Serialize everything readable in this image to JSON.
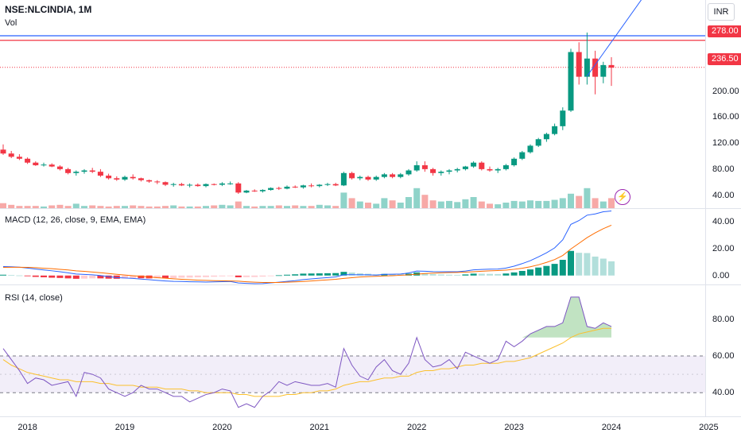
{
  "header": {
    "symbol": "NSE:NLCINDIA, 1M",
    "volume_label": "Vol",
    "currency_button": "INR",
    "macd_label": "MACD (12, 26, close, 9, EMA, EMA)",
    "rsi_label": "RSI (14, close)"
  },
  "price_tags": {
    "resistance": "278.00",
    "last": "236.50",
    "resistance_color": "#f23645",
    "last_color": "#f23645"
  },
  "icons": {
    "alert": "lightning-icon"
  },
  "chart_data": [
    {
      "type": "candlestick",
      "title": "NSE:NLCINDIA, 1M",
      "ylim": [
        20,
        340
      ],
      "y_ticks": [
        "200.00",
        "160.00",
        "120.00",
        "80.00",
        "40.00"
      ],
      "x_ticks": [
        "2018",
        "2019",
        "2020",
        "2021",
        "2022",
        "2023",
        "2024",
        "2025"
      ],
      "x_start": 2017.75,
      "lines": [
        {
          "name": "resistance",
          "y": 278,
          "color": "#f23645"
        },
        {
          "name": "upper",
          "y": 285,
          "color": "#2962ff"
        },
        {
          "name": "last",
          "y": 236.5,
          "color": "#f23645",
          "dashed": true
        }
      ],
      "trendline": {
        "from": {
          "x": 2023.75,
          "y": 223
        },
        "to": {
          "x": 2024.33,
          "y": 345
        }
      },
      "ohlc": [
        [
          110,
          118,
          102,
          104
        ],
        [
          104,
          108,
          97,
          99
        ],
        [
          99,
          103,
          94,
          96
        ],
        [
          96,
          98,
          88,
          90
        ],
        [
          90,
          92,
          85,
          86
        ],
        [
          86,
          90,
          84,
          87
        ],
        [
          87,
          89,
          83,
          84
        ],
        [
          84,
          86,
          78,
          80
        ],
        [
          80,
          82,
          72,
          74
        ],
        [
          74,
          78,
          70,
          76
        ],
        [
          76,
          80,
          73,
          78
        ],
        [
          78,
          82,
          74,
          76
        ],
        [
          76,
          80,
          68,
          70
        ],
        [
          70,
          73,
          64,
          66
        ],
        [
          66,
          69,
          62,
          64
        ],
        [
          64,
          70,
          62,
          68
        ],
        [
          68,
          72,
          64,
          66
        ],
        [
          66,
          67,
          61,
          63
        ],
        [
          63,
          64,
          59,
          61
        ],
        [
          61,
          63,
          57,
          60
        ],
        [
          60,
          61,
          54,
          56
        ],
        [
          56,
          59,
          53,
          57
        ],
        [
          57,
          59,
          54,
          55
        ],
        [
          55,
          58,
          52,
          56
        ],
        [
          56,
          58,
          53,
          54
        ],
        [
          54,
          58,
          52,
          57
        ],
        [
          57,
          58,
          55,
          56
        ],
        [
          56,
          60,
          54,
          58
        ],
        [
          58,
          61,
          56,
          58
        ],
        [
          58,
          60,
          42,
          44
        ],
        [
          44,
          48,
          43,
          47
        ],
        [
          47,
          49,
          45,
          46
        ],
        [
          46,
          49,
          44,
          48
        ],
        [
          48,
          52,
          47,
          51
        ],
        [
          51,
          53,
          48,
          50
        ],
        [
          50,
          55,
          49,
          53
        ],
        [
          53,
          55,
          51,
          52
        ],
        [
          52,
          56,
          50,
          55
        ],
        [
          55,
          58,
          52,
          54
        ],
        [
          54,
          57,
          52,
          56
        ],
        [
          56,
          59,
          54,
          57
        ],
        [
          57,
          59,
          54,
          55
        ],
        [
          55,
          76,
          54,
          74
        ],
        [
          74,
          76,
          64,
          66
        ],
        [
          66,
          70,
          63,
          68
        ],
        [
          68,
          70,
          62,
          64
        ],
        [
          64,
          70,
          62,
          68
        ],
        [
          68,
          74,
          66,
          72
        ],
        [
          72,
          74,
          66,
          68
        ],
        [
          68,
          74,
          66,
          72
        ],
        [
          72,
          80,
          70,
          78
        ],
        [
          78,
          92,
          76,
          86
        ],
        [
          86,
          92,
          76,
          80
        ],
        [
          80,
          82,
          70,
          74
        ],
        [
          74,
          78,
          70,
          76
        ],
        [
          76,
          80,
          72,
          78
        ],
        [
          78,
          82,
          75,
          80
        ],
        [
          80,
          85,
          78,
          84
        ],
        [
          84,
          92,
          82,
          90
        ],
        [
          90,
          92,
          78,
          80
        ],
        [
          80,
          84,
          76,
          78
        ],
        [
          78,
          82,
          74,
          80
        ],
        [
          80,
          88,
          78,
          86
        ],
        [
          86,
          98,
          84,
          96
        ],
        [
          96,
          108,
          94,
          106
        ],
        [
          106,
          118,
          104,
          116
        ],
        [
          116,
          128,
          114,
          126
        ],
        [
          126,
          136,
          122,
          134
        ],
        [
          134,
          150,
          132,
          146
        ],
        [
          146,
          175,
          140,
          170
        ],
        [
          170,
          265,
          168,
          260
        ],
        [
          260,
          275,
          210,
          222
        ],
        [
          222,
          290,
          210,
          250
        ],
        [
          250,
          262,
          195,
          222
        ],
        [
          222,
          245,
          212,
          240
        ],
        [
          240,
          252,
          208,
          236
        ]
      ],
      "volume": [
        9,
        6,
        4,
        4,
        4,
        3,
        5,
        6,
        4,
        8,
        4,
        5,
        4,
        3,
        4,
        4,
        5,
        4,
        3,
        3,
        4,
        5,
        3,
        3,
        3,
        4,
        5,
        6,
        5,
        12,
        4,
        3,
        4,
        4,
        5,
        4,
        5,
        4,
        4,
        6,
        5,
        4,
        28,
        18,
        12,
        10,
        8,
        18,
        14,
        10,
        20,
        36,
        24,
        14,
        12,
        13,
        11,
        16,
        20,
        12,
        8,
        7,
        10,
        13,
        12,
        14,
        13,
        13,
        15,
        18,
        26,
        22,
        36,
        18,
        12,
        18
      ],
      "volume_ylim": [
        0,
        100
      ]
    },
    {
      "type": "line",
      "title": "MACD (12, 26, close, 9, EMA, EMA)",
      "ylim": [
        -6,
        48
      ],
      "y_ticks": [
        "40.00",
        "20.00",
        "0.00"
      ],
      "series": [
        {
          "name": "macd",
          "color": "#2962ff",
          "values": [
            6.6,
            6.5,
            6.2,
            5.5,
            4.8,
            4.1,
            3.5,
            2.8,
            2,
            1.1,
            0.8,
            0.5,
            0,
            -0.8,
            -1.5,
            -1.8,
            -2.1,
            -2.6,
            -3.1,
            -3.6,
            -4,
            -4.3,
            -4.4,
            -4.6,
            -4.7,
            -4.8,
            -4.7,
            -4.5,
            -4.4,
            -5.5,
            -5.8,
            -6,
            -5.9,
            -5.4,
            -4.9,
            -4.3,
            -3.8,
            -3,
            -2.5,
            -2,
            -1.5,
            -1,
            0.6,
            0.6,
            0.5,
            0.5,
            0.3,
            0.9,
            1,
            1.1,
            1.9,
            3.3,
            3.2,
            2.9,
            2.8,
            2.8,
            2.8,
            3.3,
            4.2,
            4.5,
            4.7,
            4.8,
            5.5,
            6.9,
            8.8,
            11,
            13.8,
            16.8,
            20.4,
            26.4,
            37.8,
            40.6,
            44.6,
            45.5,
            47.1,
            47.7
          ]
        },
        {
          "name": "signal",
          "color": "#ff6d00",
          "values": [
            6,
            6.1,
            6.1,
            6,
            5.8,
            5.4,
            5.1,
            4.6,
            4.1,
            3.5,
            3.1,
            2.6,
            2.1,
            1.5,
            0.9,
            0.4,
            -0.1,
            -0.6,
            -1,
            -1.6,
            -2,
            -2.4,
            -2.8,
            -3.1,
            -3.4,
            -3.6,
            -3.8,
            -3.9,
            -4,
            -4.2,
            -4.6,
            -4.9,
            -5.1,
            -5.1,
            -5.1,
            -4.9,
            -4.7,
            -4.4,
            -4,
            -3.6,
            -3.2,
            -2.8,
            -2.1,
            -1.6,
            -1.1,
            -0.8,
            -0.6,
            -0.3,
            -0.1,
            0.2,
            0.5,
            1,
            1.5,
            1.8,
            2,
            2.2,
            2.3,
            2.5,
            2.8,
            3.2,
            3.5,
            3.7,
            4,
            4.6,
            5.4,
            6.5,
            7.9,
            9.7,
            11.8,
            14.8,
            19.6,
            23.8,
            28,
            31.5,
            34.6,
            37.2
          ]
        }
      ],
      "histogram_colors": {
        "grow_pos": "#089981",
        "fall_pos": "#b2dfdb",
        "grow_neg": "#ffcdd2",
        "fall_neg": "#f23645"
      }
    },
    {
      "type": "line",
      "title": "RSI (14, close)",
      "ylim": [
        28,
        98
      ],
      "y_ticks": [
        "80.00",
        "60.00",
        "40.00"
      ],
      "bands": {
        "upper": 60,
        "lower": 40
      },
      "series": [
        {
          "name": "rsi",
          "color": "#7e57c2",
          "values": [
            64,
            58,
            52,
            45,
            48,
            47,
            44,
            45,
            46,
            38,
            51,
            50,
            48,
            42,
            40,
            38,
            40,
            44,
            42,
            42,
            40,
            38,
            38,
            35,
            37,
            39,
            40,
            42,
            41,
            32,
            34,
            32,
            38,
            41,
            46,
            44,
            46,
            45,
            44,
            44,
            45,
            43,
            64,
            55,
            49,
            47,
            54,
            58,
            52,
            50,
            56,
            70,
            58,
            54,
            55,
            58,
            53,
            62,
            60,
            58,
            56,
            58,
            68,
            65,
            68,
            72,
            74,
            76,
            76,
            78,
            92,
            92,
            76,
            75,
            78,
            76
          ]
        },
        {
          "name": "rsi-ma",
          "color": "#fbc02d",
          "values": [
            58,
            55,
            53,
            51,
            50,
            49,
            48,
            47,
            47,
            46,
            46,
            46,
            45,
            45,
            44,
            44,
            44,
            43,
            43,
            43,
            42,
            42,
            42,
            41,
            41,
            40,
            40,
            40,
            40,
            39,
            39,
            38,
            38,
            38,
            38,
            39,
            39,
            40,
            40,
            41,
            41,
            42,
            44,
            45,
            46,
            46,
            47,
            48,
            48,
            49,
            49,
            51,
            52,
            52,
            53,
            53,
            54,
            55,
            55,
            56,
            56,
            56,
            57,
            57,
            58,
            59,
            61,
            63,
            65,
            67,
            70,
            72,
            73,
            74,
            75,
            75
          ]
        }
      ]
    }
  ]
}
